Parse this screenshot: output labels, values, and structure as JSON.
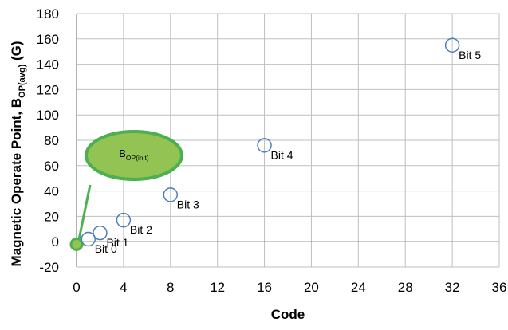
{
  "chart_data": {
    "type": "scatter",
    "xlabel": "Code",
    "ylabel": {
      "prefix": "Magnetic Operate Point, B",
      "subscript": "OP(avg)",
      "suffix": " (G)"
    },
    "xlim": [
      0,
      36
    ],
    "ylim": [
      -20,
      180
    ],
    "xticks": [
      0,
      4,
      8,
      12,
      16,
      20,
      24,
      28,
      32,
      36
    ],
    "yticks": [
      -20,
      0,
      20,
      40,
      60,
      80,
      100,
      120,
      140,
      160,
      180
    ],
    "grid": true,
    "series": [
      {
        "points": [
          {
            "x": 0,
            "y": -2,
            "label": "",
            "filled": true
          },
          {
            "x": 1,
            "y": 2,
            "label": "Bit 0",
            "filled": false
          },
          {
            "x": 2,
            "y": 7,
            "label": "Bit 1",
            "filled": false
          },
          {
            "x": 4,
            "y": 17,
            "label": "Bit 2",
            "filled": false
          },
          {
            "x": 8,
            "y": 37,
            "label": "Bit 3",
            "filled": false
          },
          {
            "x": 16,
            "y": 76,
            "label": "Bit 4",
            "filled": false
          },
          {
            "x": 32,
            "y": 155,
            "label": "Bit 5",
            "filled": false
          }
        ]
      }
    ],
    "callout": {
      "main": "B",
      "subscript": "OP(init)",
      "target_x": 0,
      "target_y": -2
    },
    "colors": {
      "marker_stroke": "#4a7ebb",
      "callout_fill": "#92c353",
      "callout_stroke": "#4caf50",
      "grid": "#bfbfbf",
      "axis": "#7f7f7f"
    }
  }
}
